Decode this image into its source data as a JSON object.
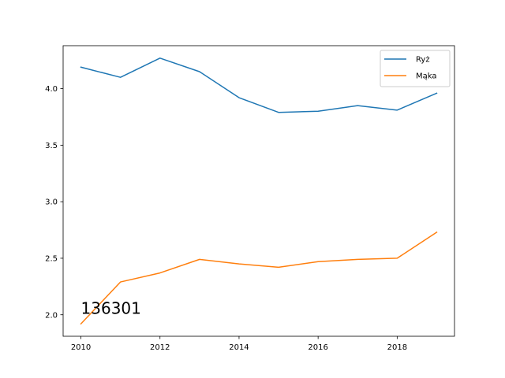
{
  "chart_data": {
    "type": "line",
    "x": [
      2010,
      2011,
      2012,
      2013,
      2014,
      2015,
      2016,
      2017,
      2018,
      2019
    ],
    "series": [
      {
        "name": "Ryż",
        "color": "#1f77b4",
        "values": [
          4.19,
          4.1,
          4.27,
          4.15,
          3.92,
          3.79,
          3.8,
          3.85,
          3.81,
          3.96
        ]
      },
      {
        "name": "Mąka",
        "color": "#ff7f0e",
        "values": [
          1.92,
          2.29,
          2.37,
          2.49,
          2.45,
          2.42,
          2.47,
          2.49,
          2.5,
          2.73
        ]
      }
    ],
    "xlim": [
      2009.55,
      2019.45
    ],
    "ylim": [
      1.81,
      4.38
    ],
    "x_ticks": [
      2010,
      2012,
      2014,
      2016,
      2018
    ],
    "y_ticks": [
      2.0,
      2.5,
      3.0,
      3.5,
      4.0
    ],
    "y_tick_labels": [
      "2.0",
      "2.5",
      "3.0",
      "3.5",
      "4.0"
    ],
    "grid": false,
    "legend_position": "top-right",
    "annotation": "136301"
  }
}
